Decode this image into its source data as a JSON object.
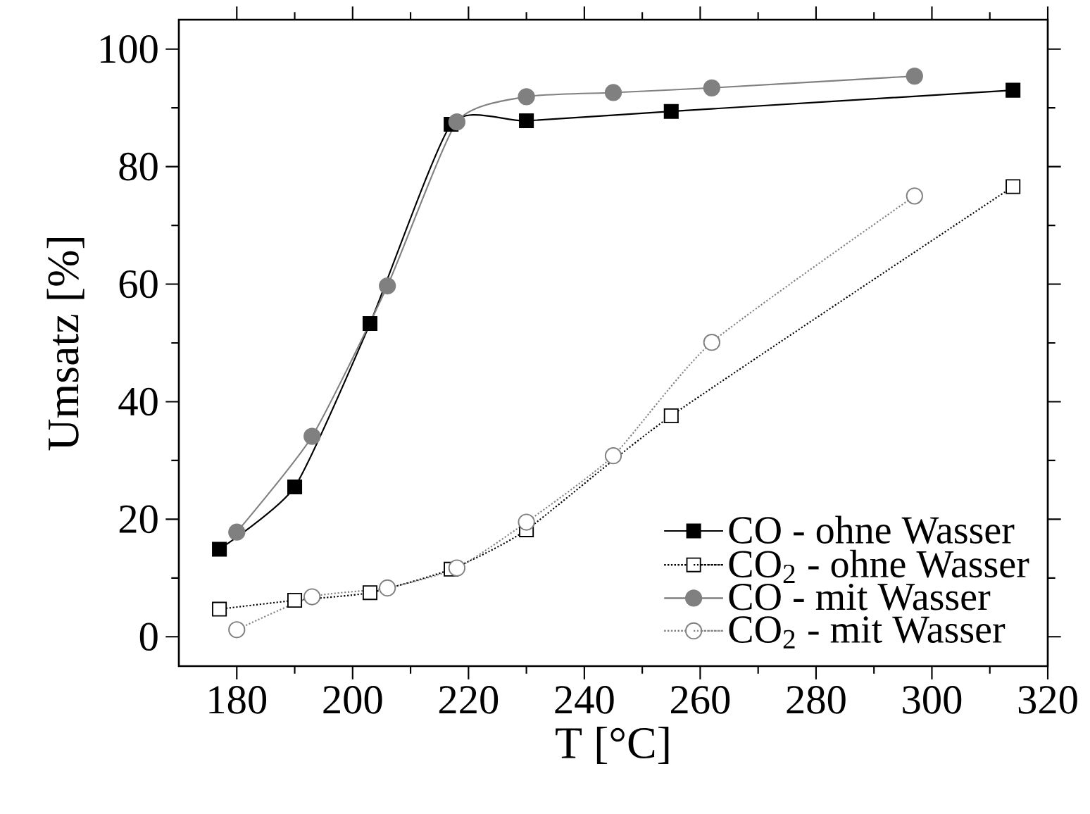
{
  "chart_data": {
    "type": "line",
    "xlabel": "T [°C]",
    "ylabel": "Umsatz [%]",
    "xlim": [
      170,
      320
    ],
    "xticks": [
      180,
      200,
      220,
      240,
      260,
      280,
      300,
      320
    ],
    "ylim": [
      -5,
      105
    ],
    "yticks": [
      0,
      20,
      40,
      60,
      80,
      100
    ],
    "legend": "bottom right",
    "series": [
      {
        "name": "CO  - ohne Wasser",
        "color": "#000000",
        "marker": "square",
        "line_style": "solid",
        "x": [
          177,
          190,
          203,
          217,
          230,
          255,
          314
        ],
        "values": [
          14.9,
          25.5,
          53.3,
          87.2,
          87.8,
          89.4,
          93
        ]
      },
      {
        "name": "CO$_{2}$ - ohne Wasser",
        "color": "#000000",
        "marker": "square",
        "line_style": "dotted",
        "x": [
          177,
          190,
          203,
          217,
          230,
          255,
          314
        ],
        "values": [
          4.7,
          6.2,
          7.5,
          11.5,
          18.2,
          37.6,
          76.6
        ]
      },
      {
        "name": "CO  - mit Wasser",
        "color": "#808080",
        "marker": "circle",
        "line_style": "solid",
        "x": [
          180,
          193,
          206,
          218,
          230,
          245,
          262,
          297
        ],
        "values": [
          17.8,
          34.1,
          59.7,
          87.6,
          91.9,
          92.6,
          93.4,
          95.4
        ]
      },
      {
        "name": "CO$_{2}$ - mit Wasser",
        "color": "#808080",
        "marker": "circle",
        "line_style": "dotted",
        "x": [
          180,
          193,
          206,
          218,
          230,
          245,
          262,
          297
        ],
        "values": [
          1.2,
          6.8,
          8.3,
          11.7,
          19.5,
          30.8,
          50.1,
          75
        ]
      }
    ]
  }
}
